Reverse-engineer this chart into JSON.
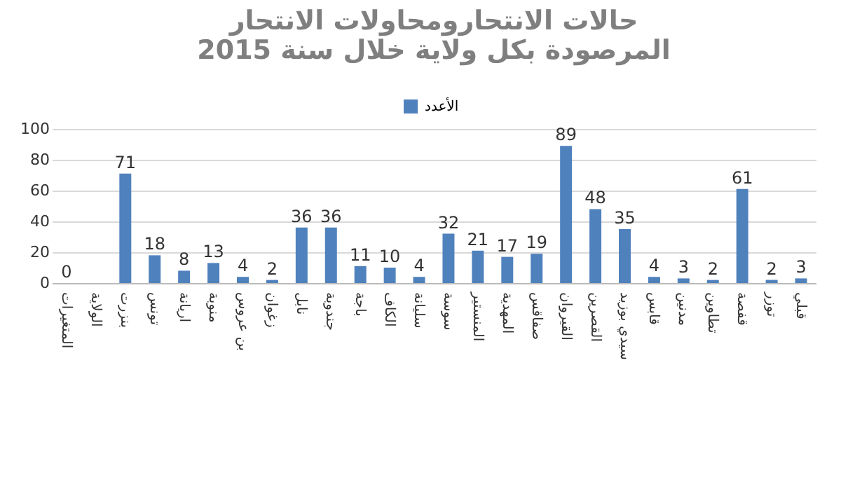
{
  "chart_data": {
    "type": "bar",
    "title": "حالات الانتحارومحاولات الانتحار المرصودة بكل ولاية خلال سنة 2015",
    "categories": [
      "المتغيرات",
      "الولاية",
      "بنزرت",
      "تونس",
      "اريانة",
      "منوبة",
      "بن عروس",
      "زغوان",
      "نابل",
      "جندوبة",
      "باجة",
      "الكاف",
      "سليانة",
      "سوسة",
      "المنستير",
      "المهدية",
      "صفاقس",
      "القيروان",
      "القصرين",
      "سيدي بوزيد",
      "قابس",
      "مدنين",
      "تطاوين",
      "قفصة",
      "توزر",
      "قبلي"
    ],
    "series": [
      {
        "name": "الأعدد",
        "color": "#4f81bd",
        "values": [
          0,
          null,
          71,
          18,
          8,
          13,
          4,
          2,
          36,
          36,
          11,
          10,
          4,
          32,
          21,
          17,
          19,
          89,
          48,
          35,
          4,
          3,
          2,
          61,
          2,
          3
        ]
      }
    ],
    "ylim": [
      0,
      100
    ],
    "yticks": [
      0,
      20,
      40,
      60,
      80,
      100
    ],
    "grid": "y",
    "legend": "top",
    "data_labels": true
  }
}
